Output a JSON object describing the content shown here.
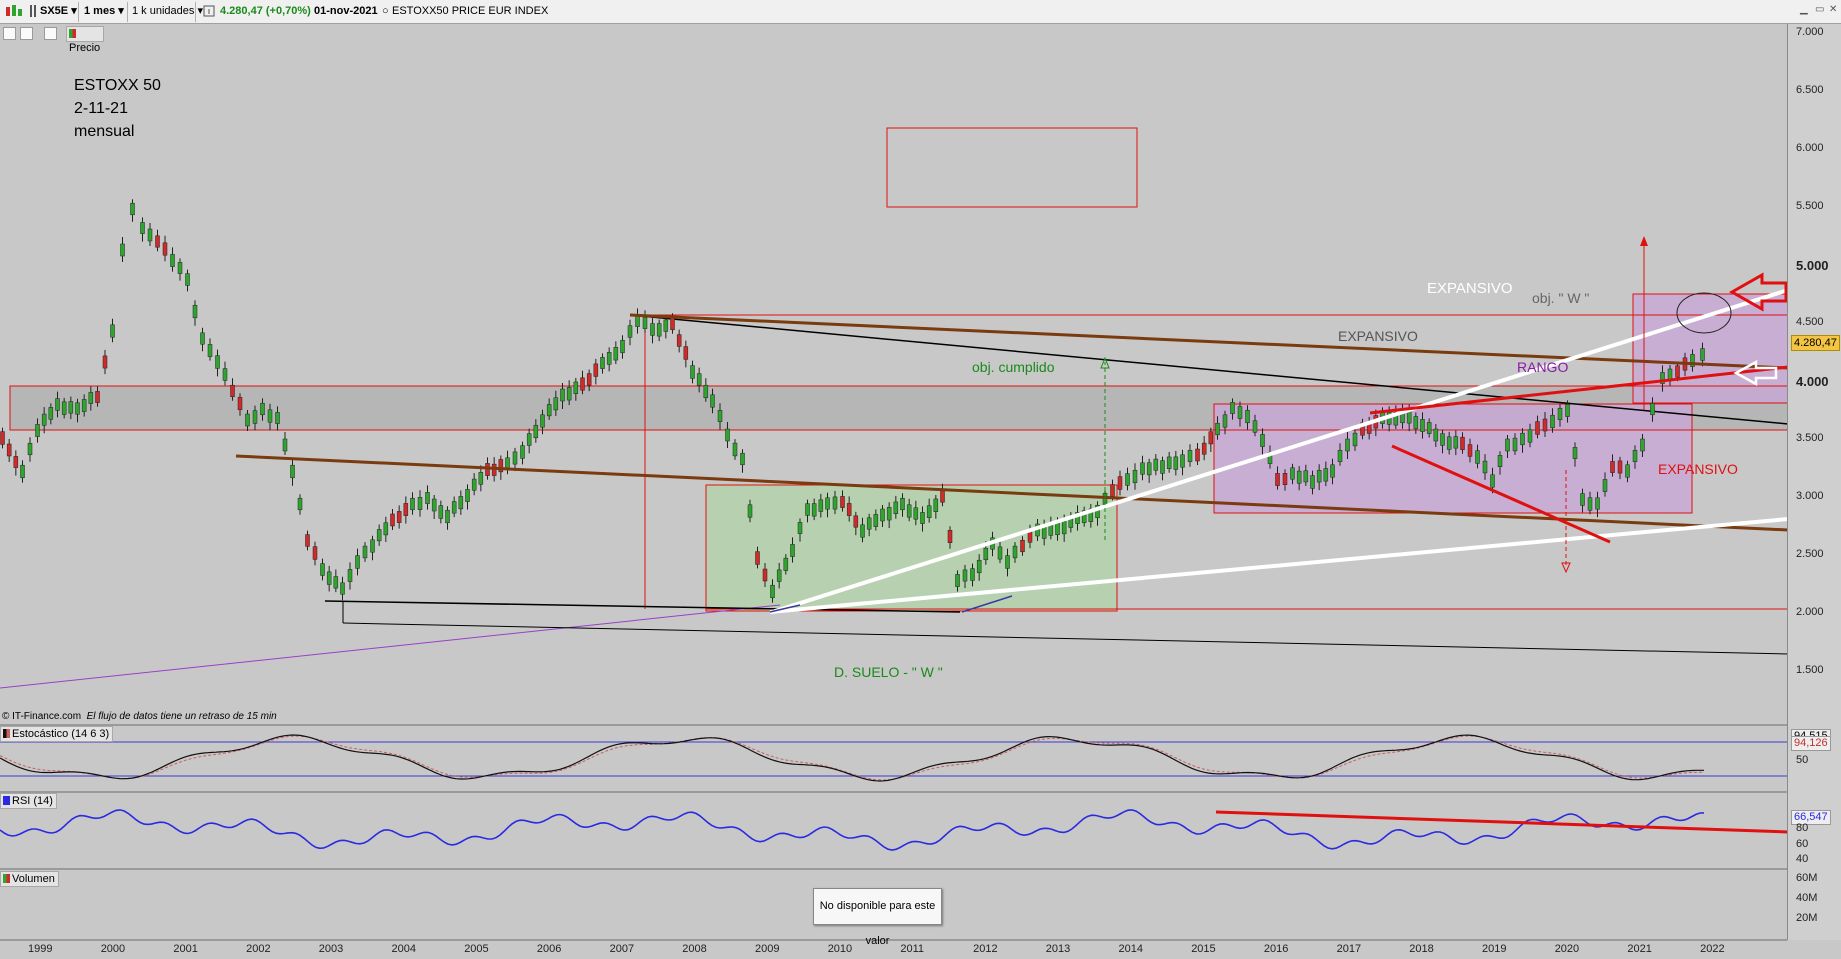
{
  "toolbar": {
    "symbol": "SX5E",
    "period": "1 mes",
    "units": "1 k unidades",
    "price_change": "4.280,47 (+0,70%)",
    "date": "01-nov-2021",
    "instrument": "ESTOXX50 PRICE EUR INDEX"
  },
  "subbar": {
    "price_label": "Precio"
  },
  "chart": {
    "title_lines": [
      "ESTOXX 50",
      "2-11-21",
      "mensual"
    ],
    "credit": "© IT-Finance.com",
    "delay_note": "El flujo de datos tiene un retraso de 15 min",
    "last_price_tag": "4.280,47",
    "price_ticks": [
      "7.000",
      "6.500",
      "6.000",
      "5.500",
      "5.000",
      "4.500",
      "4.000",
      "3.500",
      "3.000",
      "2.500",
      "2.000",
      "1.500"
    ],
    "x_labels": [
      "1999",
      "2000",
      "2001",
      "2002",
      "2003",
      "2004",
      "2005",
      "2006",
      "2007",
      "2008",
      "2009",
      "2010",
      "2011",
      "2012",
      "2013",
      "2014",
      "2015",
      "2016",
      "2017",
      "2018",
      "2019",
      "2020",
      "2021",
      "2022"
    ],
    "annotations": {
      "expansivo_top": "EXPANSIVO",
      "expansivo_mid": "EXPANSIVO",
      "expansivo_right": "EXPANSIVO",
      "obj_w": "obj. \" W \"",
      "rango": "RANGO",
      "obj_cumplido": "obj. cumplido",
      "double_bottom": "D. SUELO -  \" W \""
    },
    "colors": {
      "bull_candle": "#2fa52f",
      "bear_candle": "#d02a2a",
      "trend_brown": "#7a3b10",
      "trend_red": "#e01010",
      "trend_white": "#ffffff",
      "range_purple": "#c8a6d6",
      "range_green": "#b7d1b0"
    }
  },
  "stochastic": {
    "label": "Estocástico (14 6 3)",
    "value_k": "94,515",
    "value_d": "94,126",
    "tick": "50"
  },
  "rsi": {
    "label": "RSI (14)",
    "value": "66,547",
    "ticks": [
      "80",
      "60",
      "40"
    ]
  },
  "volume": {
    "label": "Volumen",
    "ticks": [
      "60M",
      "40M",
      "20M"
    ],
    "unavailable": "No disponible para este valor"
  }
}
